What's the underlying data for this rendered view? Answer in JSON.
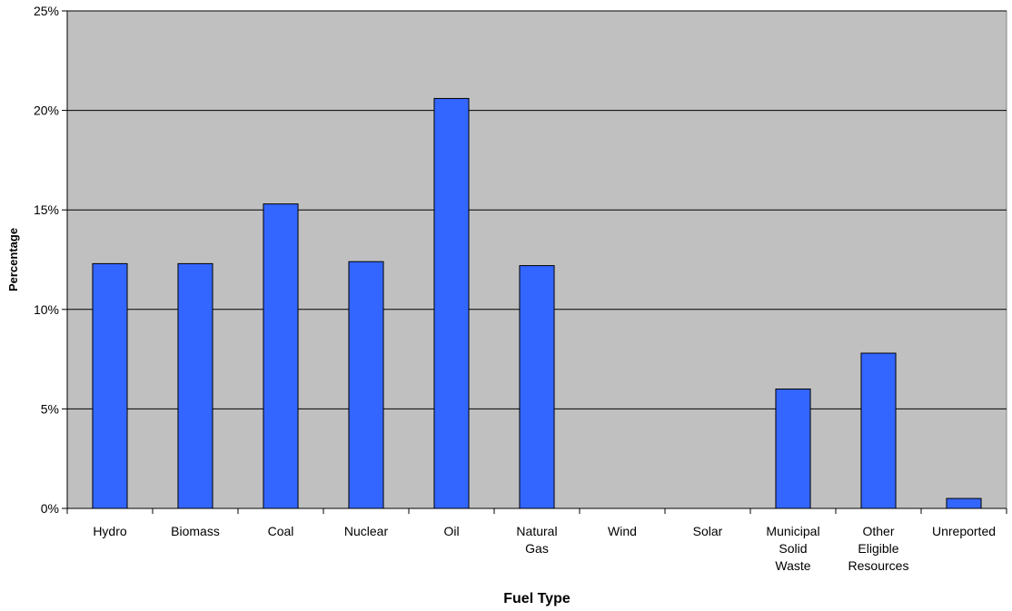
{
  "chart_data": {
    "type": "bar",
    "title": "",
    "xlabel": "Fuel Type",
    "ylabel": "Percentage",
    "ylim": [
      0,
      25
    ],
    "yticks": [
      0,
      5,
      10,
      15,
      20,
      25
    ],
    "ytick_labels": [
      "0%",
      "5%",
      "10%",
      "15%",
      "20%",
      "25%"
    ],
    "grid": true,
    "legend": "none",
    "colors": {
      "bar": "#3366ff",
      "plot_bg": "#c0c0c0"
    },
    "categories": [
      "Hydro",
      "Biomass",
      "Coal",
      "Nuclear",
      "Oil",
      "Natural Gas",
      "Wind",
      "Solar",
      "Municipal Solid Waste",
      "Other Eligible Resources",
      "Unreported"
    ],
    "category_lines": [
      [
        "Hydro"
      ],
      [
        "Biomass"
      ],
      [
        "Coal"
      ],
      [
        "Nuclear"
      ],
      [
        "Oil"
      ],
      [
        "Natural",
        "Gas"
      ],
      [
        "Wind"
      ],
      [
        "Solar"
      ],
      [
        "Municipal",
        "Solid",
        "Waste"
      ],
      [
        "Other",
        "Eligible",
        "Resources"
      ],
      [
        "Unreported"
      ]
    ],
    "values": [
      12.3,
      12.3,
      15.3,
      12.4,
      20.6,
      12.2,
      0,
      0,
      6.0,
      7.8,
      0.5
    ]
  }
}
